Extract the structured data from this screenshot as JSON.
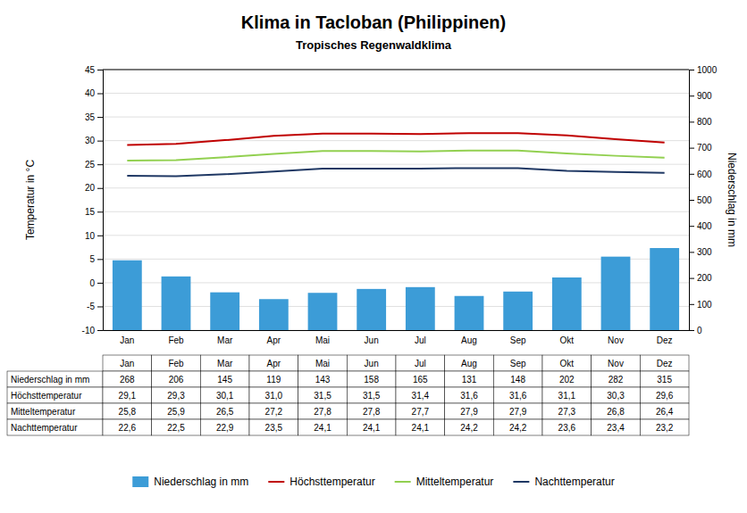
{
  "chart_data": {
    "type": "bar",
    "title": "Klima in Tacloban (Philippinen)",
    "subtitle": "Tropisches Regenwaldklima",
    "categories": [
      "Jan",
      "Feb",
      "Mar",
      "Apr",
      "Mai",
      "Jun",
      "Jul",
      "Aug",
      "Sep",
      "Okt",
      "Nov",
      "Dez"
    ],
    "y_label": "Temperatur in °C",
    "y2_label": "Niederschlag in mm",
    "ylim": [
      -10,
      45
    ],
    "yticks": [
      -10,
      -5,
      0,
      5,
      10,
      15,
      20,
      25,
      30,
      35,
      40,
      45
    ],
    "y2lim": [
      0,
      1000
    ],
    "y2ticks": [
      0,
      100,
      200,
      300,
      400,
      500,
      600,
      700,
      800,
      900,
      1000
    ],
    "grid": true,
    "legend": "bottom",
    "series": [
      {
        "name": "Niederschlag in mm",
        "type": "bar",
        "axis": "y2",
        "color": "#3c9cd7",
        "values": [
          268,
          206,
          145,
          119,
          143,
          158,
          165,
          131,
          148,
          202,
          282,
          315
        ]
      },
      {
        "name": "Höchsttemperatur",
        "type": "line",
        "color": "#C00000",
        "values": [
          29.1,
          29.3,
          30.1,
          31.0,
          31.5,
          31.5,
          31.4,
          31.6,
          31.6,
          31.1,
          30.3,
          29.6
        ],
        "value_labels": [
          "29,1",
          "29,3",
          "30,1",
          "31,0",
          "31,5",
          "31,5",
          "31,4",
          "31,6",
          "31,6",
          "31,1",
          "30,3",
          "29,6"
        ]
      },
      {
        "name": "Mitteltemperatur",
        "type": "line",
        "color": "#92D050",
        "values": [
          25.8,
          25.9,
          26.5,
          27.2,
          27.8,
          27.8,
          27.7,
          27.9,
          27.9,
          27.3,
          26.8,
          26.4
        ],
        "value_labels": [
          "25,8",
          "25,9",
          "26,5",
          "27,2",
          "27,8",
          "27,8",
          "27,7",
          "27,9",
          "27,9",
          "27,3",
          "26,8",
          "26,4"
        ]
      },
      {
        "name": "Nachttemperatur",
        "type": "line",
        "color": "#1F3864",
        "values": [
          22.6,
          22.5,
          22.9,
          23.5,
          24.1,
          24.1,
          24.1,
          24.2,
          24.2,
          23.6,
          23.4,
          23.2
        ],
        "value_labels": [
          "22,6",
          "22,5",
          "22,9",
          "23,5",
          "24,1",
          "24,1",
          "24,1",
          "24,2",
          "24,2",
          "23,6",
          "23,4",
          "23,2"
        ]
      }
    ]
  }
}
